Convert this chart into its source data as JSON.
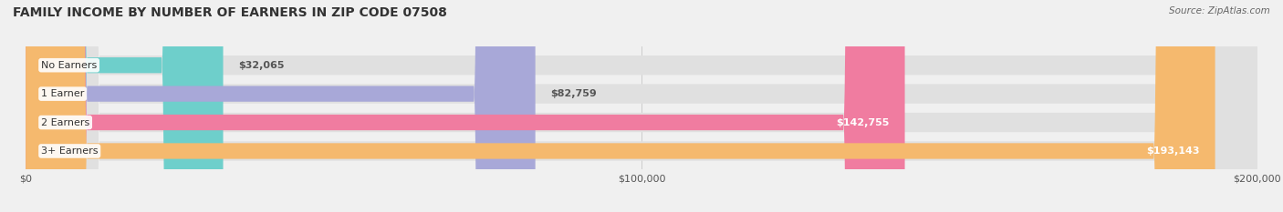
{
  "title": "FAMILY INCOME BY NUMBER OF EARNERS IN ZIP CODE 07508",
  "source": "Source: ZipAtlas.com",
  "categories": [
    "No Earners",
    "1 Earner",
    "2 Earners",
    "3+ Earners"
  ],
  "values": [
    32065,
    82759,
    142755,
    193143
  ],
  "bar_colors": [
    "#6ecfcb",
    "#a8a8d8",
    "#f07ca0",
    "#f5b96e"
  ],
  "value_labels": [
    "$32,065",
    "$82,759",
    "$142,755",
    "$193,143"
  ],
  "xmax": 200000,
  "background_color": "#f0f0f0",
  "track_color": "#e0e0e0"
}
